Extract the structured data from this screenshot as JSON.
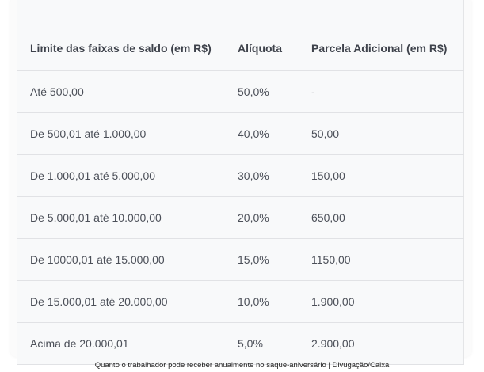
{
  "table": {
    "headers": [
      "Limite das faixas de saldo (em R$)",
      "Alíquota",
      "Parcela Adicional (em R$)"
    ],
    "rows": [
      [
        "Até 500,00",
        "50,0%",
        "-"
      ],
      [
        "De 500,01 até 1.000,00",
        "40,0%",
        "50,00"
      ],
      [
        "De 1.000,01 até 5.000,00",
        "30,0%",
        "150,00"
      ],
      [
        "De 5.000,01 até 10.000,00",
        "20,0%",
        "650,00"
      ],
      [
        "De 10000,01 até 15.000,00",
        "15,0%",
        "1150,00"
      ],
      [
        "De 15.000,01 até 20.000,00",
        "10,0%",
        "1.900,00"
      ],
      [
        "Acima de 20.000,01",
        "5,0%",
        "2.900,00"
      ]
    ]
  },
  "caption": "Quanto o trabalhador pode receber anualmente no saque-aniversário | Divugação/Caixa"
}
